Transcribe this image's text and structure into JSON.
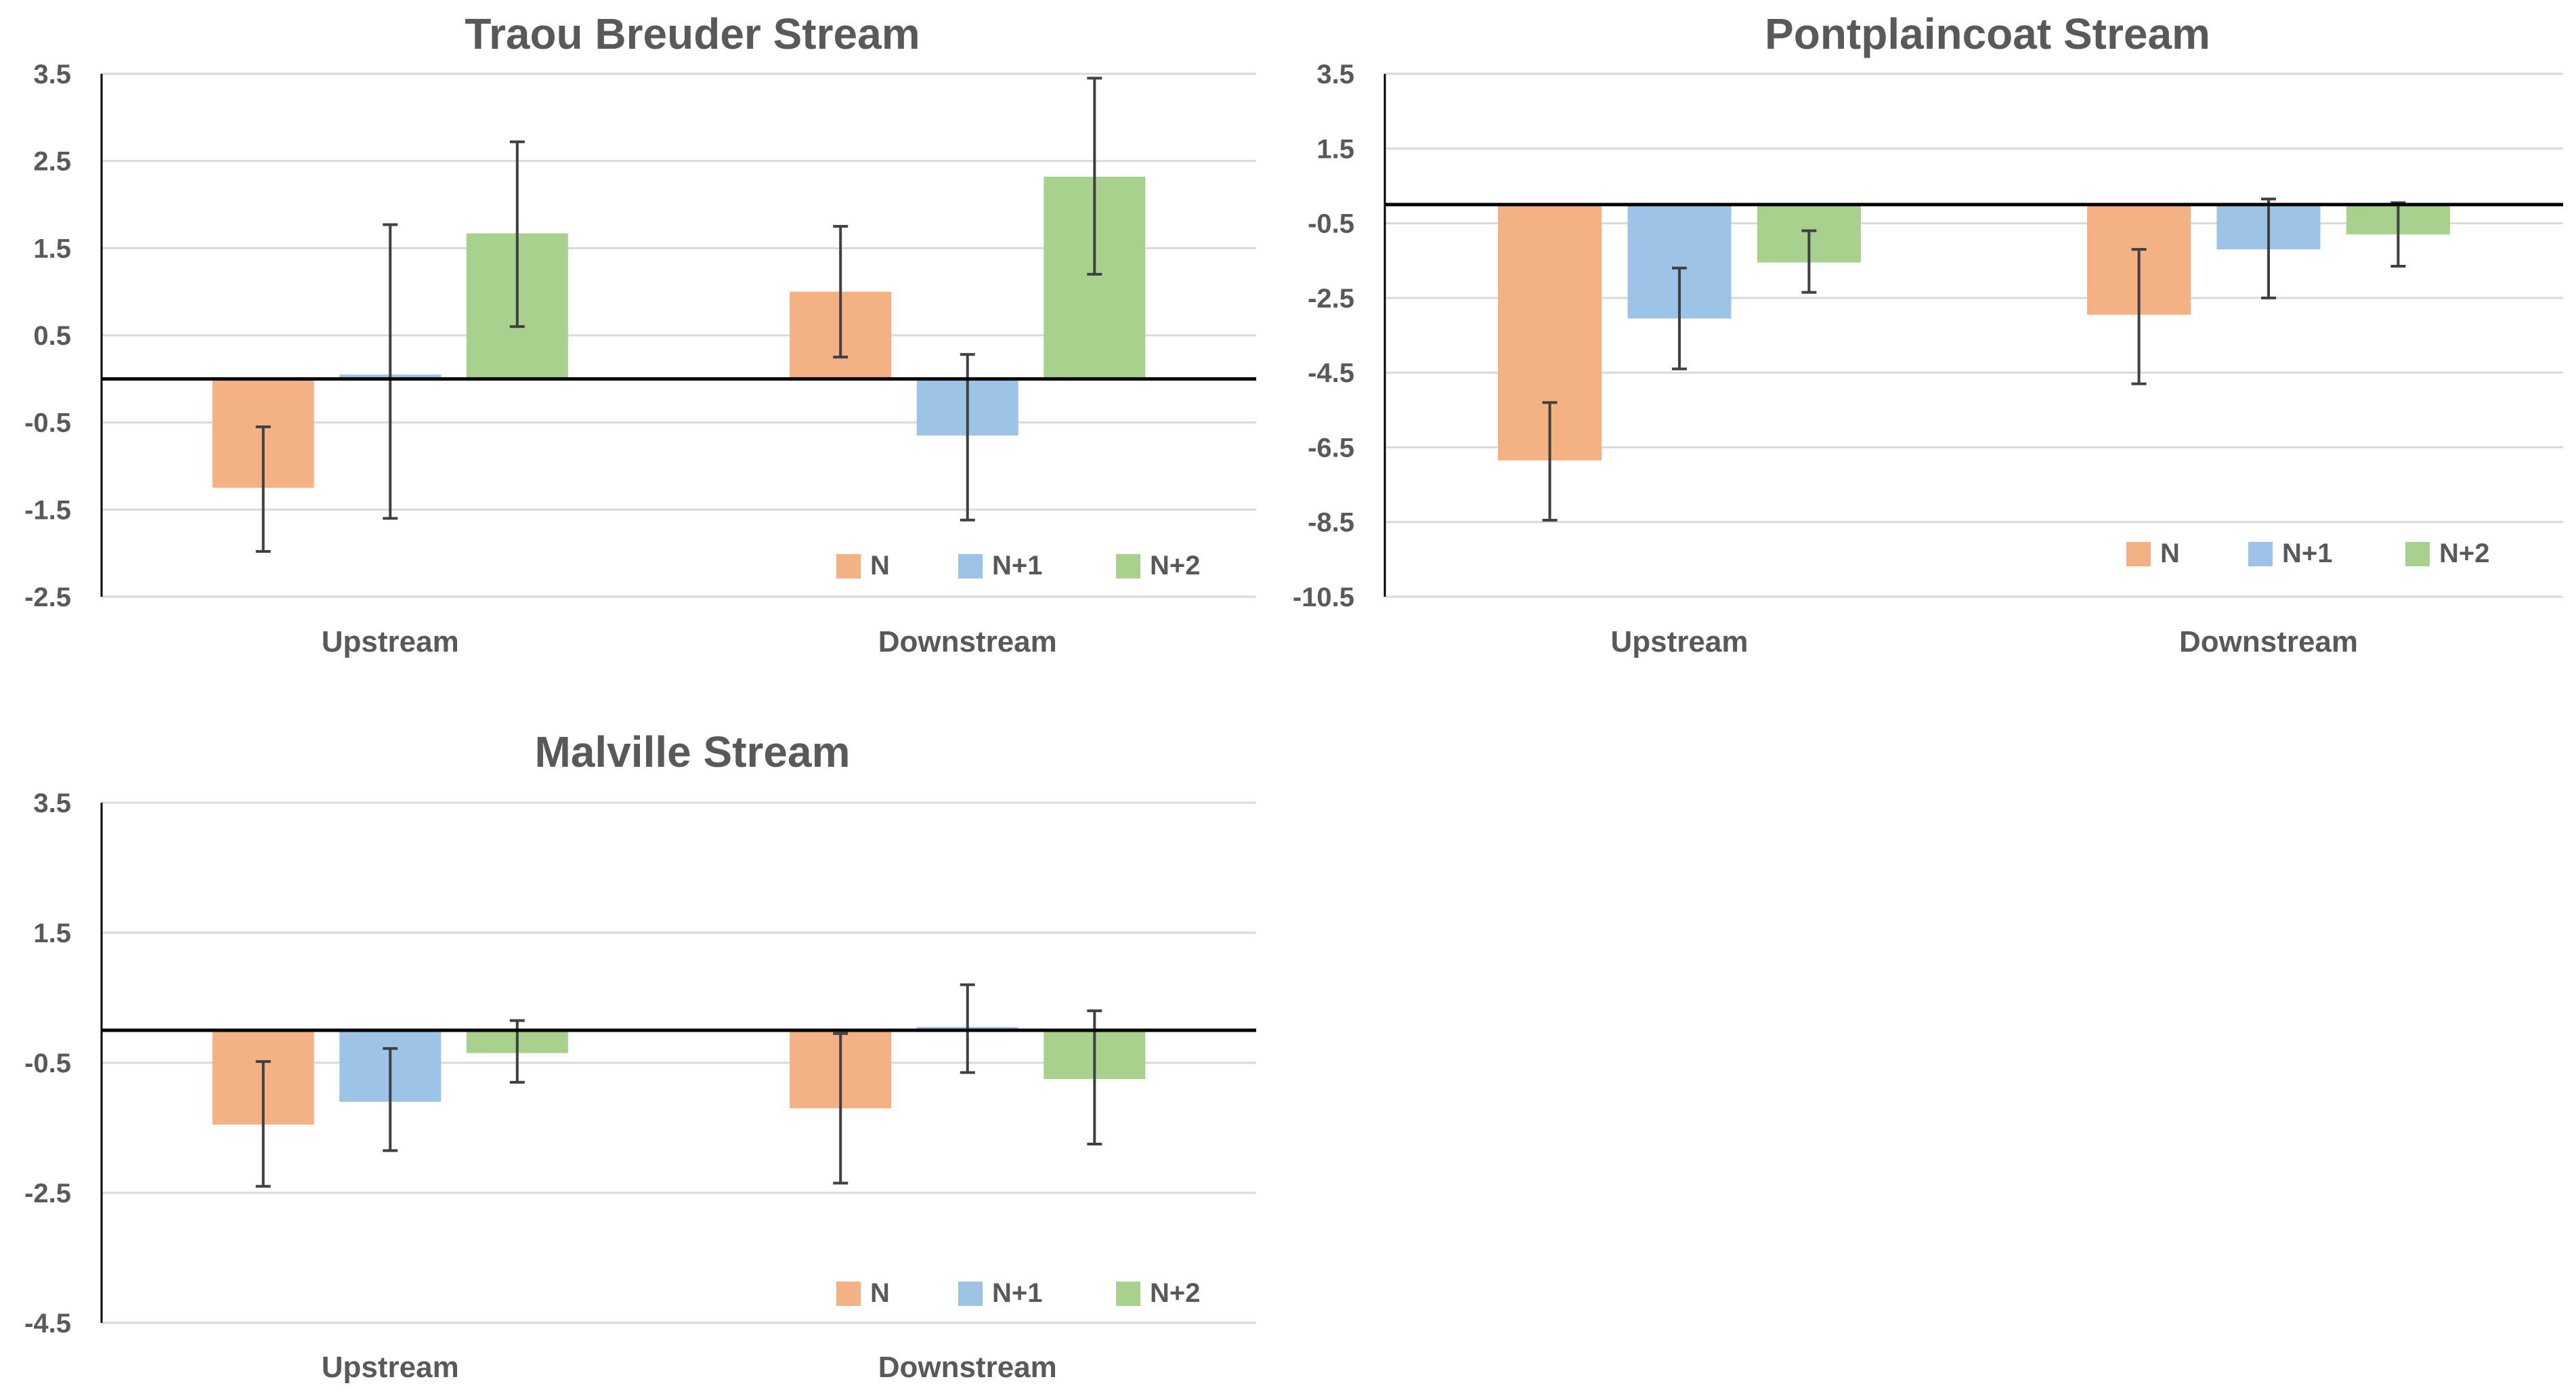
{
  "chart_data": [
    {
      "type": "bar",
      "title": "Traou Breuder Stream",
      "categories": [
        "Upstream",
        "Downstream"
      ],
      "yticks": [
        "3.5",
        "2.5",
        "1.5",
        "0.5",
        "-0.5",
        "-1.5",
        "-2.5"
      ],
      "ylim": [
        -2.5,
        3.5
      ],
      "grid": true,
      "legend_position": "bottom-right",
      "series": [
        {
          "name": "N",
          "color": "#F4B183",
          "values": [
            -1.25,
            1.0
          ],
          "err_low": [
            -1.98,
            0.25
          ],
          "err_high": [
            -0.55,
            1.75
          ]
        },
        {
          "name": "N+1",
          "color": "#9DC3E6",
          "values": [
            0.05,
            -0.65
          ],
          "err_low": [
            -1.6,
            -1.62
          ],
          "err_high": [
            1.77,
            0.28
          ]
        },
        {
          "name": "N+2",
          "color": "#A9D18E",
          "values": [
            1.67,
            2.32
          ],
          "err_low": [
            0.6,
            1.2
          ],
          "err_high": [
            2.72,
            3.45
          ]
        }
      ]
    },
    {
      "type": "bar",
      "title": "Pontplaincoat Stream",
      "categories": [
        "Upstream",
        "Downstream"
      ],
      "yticks": [
        "3.5",
        "1.5",
        "-0.5",
        "-2.5",
        "-4.5",
        "-6.5",
        "-8.5",
        "-10.5"
      ],
      "ylim": [
        -10.5,
        3.5
      ],
      "grid": true,
      "legend_position": "bottom-right",
      "series": [
        {
          "name": "N",
          "color": "#F4B183",
          "values": [
            -6.85,
            -2.95
          ],
          "err_low": [
            -8.45,
            -4.8
          ],
          "err_high": [
            -5.3,
            -1.2
          ]
        },
        {
          "name": "N+1",
          "color": "#9DC3E6",
          "values": [
            -3.05,
            -1.2
          ],
          "err_low": [
            -4.4,
            -2.5
          ],
          "err_high": [
            -1.7,
            0.15
          ]
        },
        {
          "name": "N+2",
          "color": "#A9D18E",
          "values": [
            -1.55,
            -0.8
          ],
          "err_low": [
            -2.35,
            -1.65
          ],
          "err_high": [
            -0.7,
            0.05
          ]
        }
      ]
    },
    {
      "type": "bar",
      "title": "Malville Stream",
      "categories": [
        "Upstream",
        "Downstream"
      ],
      "yticks": [
        "3.5",
        "1.5",
        "-0.5",
        "-2.5",
        "-4.5"
      ],
      "ylim": [
        -4.5,
        3.5
      ],
      "grid": true,
      "legend_position": "bottom-right",
      "series": [
        {
          "name": "N",
          "color": "#F4B183",
          "values": [
            -1.45,
            -1.2
          ],
          "err_low": [
            -2.4,
            -2.35
          ],
          "err_high": [
            -0.48,
            -0.05
          ]
        },
        {
          "name": "N+1",
          "color": "#9DC3E6",
          "values": [
            -1.1,
            0.05
          ],
          "err_low": [
            -1.85,
            -0.65
          ],
          "err_high": [
            -0.28,
            0.7
          ]
        },
        {
          "name": "N+2",
          "color": "#A9D18E",
          "values": [
            -0.35,
            -0.75
          ],
          "err_low": [
            -0.8,
            -1.75
          ],
          "err_high": [
            0.15,
            0.3
          ]
        }
      ]
    }
  ]
}
